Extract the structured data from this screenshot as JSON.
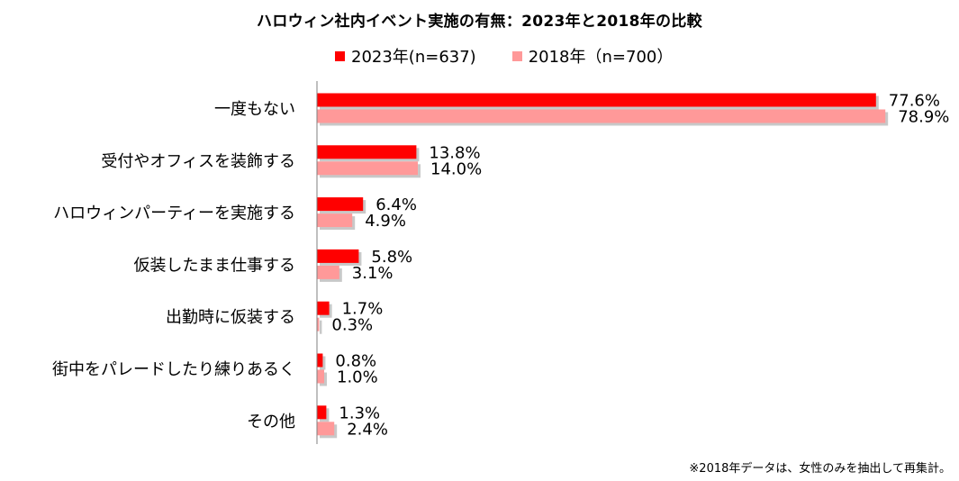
{
  "chart_data": {
    "type": "bar",
    "orientation": "horizontal",
    "title": "ハロウィン社内イベント実施の有無：2023年と2018年の比較",
    "categories": [
      "一度もない",
      "受付やオフィスを装飾する",
      "ハロウィンパーティーを実施する",
      "仮装したまま仕事する",
      "出勤時に仮装する",
      "街中をパレードしたり練りあるく",
      "その他"
    ],
    "series": [
      {
        "name": "2023年(n=637)",
        "color": "#ff0000",
        "values": [
          77.6,
          13.8,
          6.4,
          5.8,
          1.7,
          0.8,
          1.3
        ]
      },
      {
        "name": "2018年（n=700）",
        "color": "#ff9999",
        "values": [
          78.9,
          14.0,
          4.9,
          3.1,
          0.3,
          1.0,
          2.4
        ]
      }
    ],
    "value_suffix": "%",
    "xlim": [
      0,
      100
    ],
    "grid": false,
    "legend_position": "top"
  },
  "footnote": "※2018年データは、女性のみを抽出して再集計。"
}
